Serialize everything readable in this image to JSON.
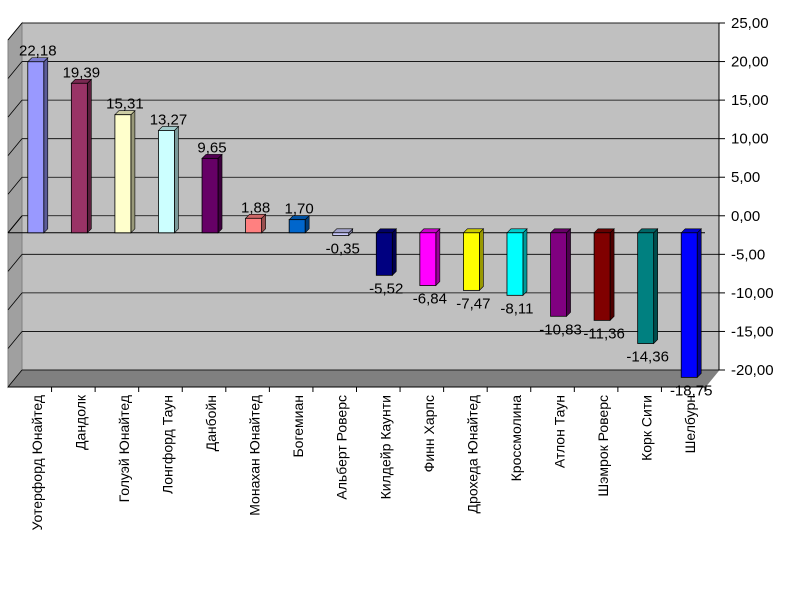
{
  "chart_data": {
    "type": "bar",
    "title": "",
    "xlabel": "",
    "ylabel": "",
    "ylim": [
      -20,
      25
    ],
    "yticks": [
      "25,00",
      "20,00",
      "15,00",
      "10,00",
      "5,00",
      "0,00",
      "-5,00",
      "-10,00",
      "-15,00",
      "-20,00"
    ],
    "ytick_values": [
      25,
      20,
      15,
      10,
      5,
      0,
      -5,
      -10,
      -15,
      -20
    ],
    "grid": true,
    "legend": "none",
    "categories": [
      "Уотерфорд Юнайтед",
      "Дандолк",
      "Голуэй Юнайтед",
      "Лонгфорд Таун",
      "Данбойн",
      "Монахан Юнайтед",
      "Богемиан",
      "Альберт Роверс",
      "Килдейр Каунти",
      "Финн Харпс",
      "Дрохеда Юнайтед",
      "Кроссмолина",
      "Атлон Таун",
      "Шэмрок Роверс",
      "Корк Сити",
      "Шелбурн"
    ],
    "values": [
      22.18,
      19.39,
      15.31,
      13.27,
      9.65,
      1.88,
      1.7,
      -0.35,
      -5.52,
      -6.84,
      -7.47,
      -8.11,
      -10.83,
      -11.36,
      -14.36,
      -18.75
    ],
    "data_labels": [
      "22,18",
      "19,39",
      "15,31",
      "13,27",
      "9,65",
      "1,88",
      "1,70",
      "-0,35",
      "-5,52",
      "-6,84",
      "-7,47",
      "-8,11",
      "-10,83",
      "-11,36",
      "-14,36",
      "-18,75"
    ],
    "colors": [
      "#9999ff",
      "#993366",
      "#ffffcc",
      "#ccffff",
      "#660066",
      "#ff8080",
      "#0066cc",
      "#ccccff",
      "#000080",
      "#ff00ff",
      "#ffff00",
      "#00ffff",
      "#800080",
      "#800000",
      "#008080",
      "#0000ff"
    ],
    "background_color": "#c0c0c0"
  }
}
